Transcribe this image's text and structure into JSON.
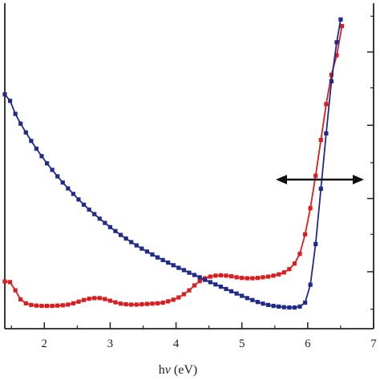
{
  "chart_data": {
    "type": "line",
    "title": "",
    "xlabel": "hν (eV)",
    "xlabel_main": "h",
    "xlabel_italic": "ν",
    "xlabel_unit": " (eV)",
    "ylabel": "",
    "xlim": [
      1.4,
      7
    ],
    "x_ticks": [
      2,
      3,
      4,
      5,
      6,
      7
    ],
    "x_tick_labels": [
      "2",
      "3",
      "4",
      "5",
      "6",
      "7"
    ],
    "left_ylim": [
      0,
      1
    ],
    "right_ylim": [
      0,
      1
    ],
    "annotation": "double-headed arrow",
    "series": [
      {
        "color": "#d81e1e",
        "marker": "square",
        "points": [
          [
            1.4,
            0.145
          ],
          [
            1.48,
            0.143
          ],
          [
            1.56,
            0.118
          ],
          [
            1.64,
            0.09
          ],
          [
            1.72,
            0.078
          ],
          [
            1.8,
            0.073
          ],
          [
            1.88,
            0.071
          ],
          [
            1.96,
            0.07
          ],
          [
            2.04,
            0.07
          ],
          [
            2.12,
            0.07
          ],
          [
            2.2,
            0.071
          ],
          [
            2.28,
            0.072
          ],
          [
            2.36,
            0.074
          ],
          [
            2.44,
            0.078
          ],
          [
            2.52,
            0.083
          ],
          [
            2.6,
            0.088
          ],
          [
            2.68,
            0.092
          ],
          [
            2.76,
            0.094
          ],
          [
            2.84,
            0.094
          ],
          [
            2.92,
            0.091
          ],
          [
            3.0,
            0.086
          ],
          [
            3.08,
            0.081
          ],
          [
            3.16,
            0.077
          ],
          [
            3.24,
            0.075
          ],
          [
            3.32,
            0.074
          ],
          [
            3.4,
            0.074
          ],
          [
            3.48,
            0.075
          ],
          [
            3.56,
            0.076
          ],
          [
            3.64,
            0.077
          ],
          [
            3.72,
            0.078
          ],
          [
            3.8,
            0.08
          ],
          [
            3.88,
            0.084
          ],
          [
            3.96,
            0.089
          ],
          [
            4.04,
            0.096
          ],
          [
            4.12,
            0.106
          ],
          [
            4.2,
            0.118
          ],
          [
            4.28,
            0.133
          ],
          [
            4.36,
            0.146
          ],
          [
            4.44,
            0.155
          ],
          [
            4.52,
            0.16
          ],
          [
            4.6,
            0.163
          ],
          [
            4.68,
            0.164
          ],
          [
            4.76,
            0.163
          ],
          [
            4.84,
            0.161
          ],
          [
            4.92,
            0.158
          ],
          [
            5.0,
            0.156
          ],
          [
            5.08,
            0.155
          ],
          [
            5.16,
            0.155
          ],
          [
            5.24,
            0.156
          ],
          [
            5.32,
            0.158
          ],
          [
            5.4,
            0.16
          ],
          [
            5.48,
            0.163
          ],
          [
            5.56,
            0.167
          ],
          [
            5.64,
            0.173
          ],
          [
            5.72,
            0.183
          ],
          [
            5.8,
            0.2
          ],
          [
            5.88,
            0.23
          ],
          [
            5.96,
            0.29
          ],
          [
            6.04,
            0.37
          ],
          [
            6.12,
            0.47
          ],
          [
            6.2,
            0.58
          ],
          [
            6.28,
            0.69
          ],
          [
            6.36,
            0.78
          ],
          [
            6.44,
            0.84
          ],
          [
            6.52,
            0.93
          ]
        ]
      },
      {
        "color": "#1f2a8a",
        "marker": "square",
        "points": [
          [
            1.4,
            0.72
          ],
          [
            1.48,
            0.7
          ],
          [
            1.56,
            0.66
          ],
          [
            1.64,
            0.63
          ],
          [
            1.72,
            0.603
          ],
          [
            1.8,
            0.577
          ],
          [
            1.88,
            0.553
          ],
          [
            1.96,
            0.53
          ],
          [
            2.04,
            0.508
          ],
          [
            2.12,
            0.488
          ],
          [
            2.2,
            0.468
          ],
          [
            2.28,
            0.449
          ],
          [
            2.36,
            0.431
          ],
          [
            2.44,
            0.414
          ],
          [
            2.52,
            0.397
          ],
          [
            2.6,
            0.381
          ],
          [
            2.68,
            0.366
          ],
          [
            2.76,
            0.352
          ],
          [
            2.84,
            0.338
          ],
          [
            2.92,
            0.325
          ],
          [
            3.0,
            0.312
          ],
          [
            3.08,
            0.3
          ],
          [
            3.16,
            0.288
          ],
          [
            3.24,
            0.277
          ],
          [
            3.32,
            0.266
          ],
          [
            3.4,
            0.256
          ],
          [
            3.48,
            0.246
          ],
          [
            3.56,
            0.237
          ],
          [
            3.64,
            0.228
          ],
          [
            3.72,
            0.219
          ],
          [
            3.8,
            0.211
          ],
          [
            3.88,
            0.203
          ],
          [
            3.96,
            0.195
          ],
          [
            4.04,
            0.187
          ],
          [
            4.12,
            0.18
          ],
          [
            4.2,
            0.172
          ],
          [
            4.28,
            0.165
          ],
          [
            4.36,
            0.158
          ],
          [
            4.44,
            0.15
          ],
          [
            4.52,
            0.143
          ],
          [
            4.6,
            0.136
          ],
          [
            4.68,
            0.129
          ],
          [
            4.76,
            0.122
          ],
          [
            4.84,
            0.115
          ],
          [
            4.92,
            0.108
          ],
          [
            5.0,
            0.101
          ],
          [
            5.08,
            0.094
          ],
          [
            5.16,
            0.088
          ],
          [
            5.24,
            0.082
          ],
          [
            5.32,
            0.077
          ],
          [
            5.4,
            0.073
          ],
          [
            5.48,
            0.07
          ],
          [
            5.56,
            0.068
          ],
          [
            5.64,
            0.066
          ],
          [
            5.72,
            0.065
          ],
          [
            5.8,
            0.065
          ],
          [
            5.88,
            0.068
          ],
          [
            5.96,
            0.08
          ],
          [
            6.04,
            0.135
          ],
          [
            6.12,
            0.26
          ],
          [
            6.2,
            0.43
          ],
          [
            6.28,
            0.6
          ],
          [
            6.36,
            0.76
          ],
          [
            6.44,
            0.88
          ],
          [
            6.5,
            0.95
          ]
        ]
      }
    ]
  }
}
